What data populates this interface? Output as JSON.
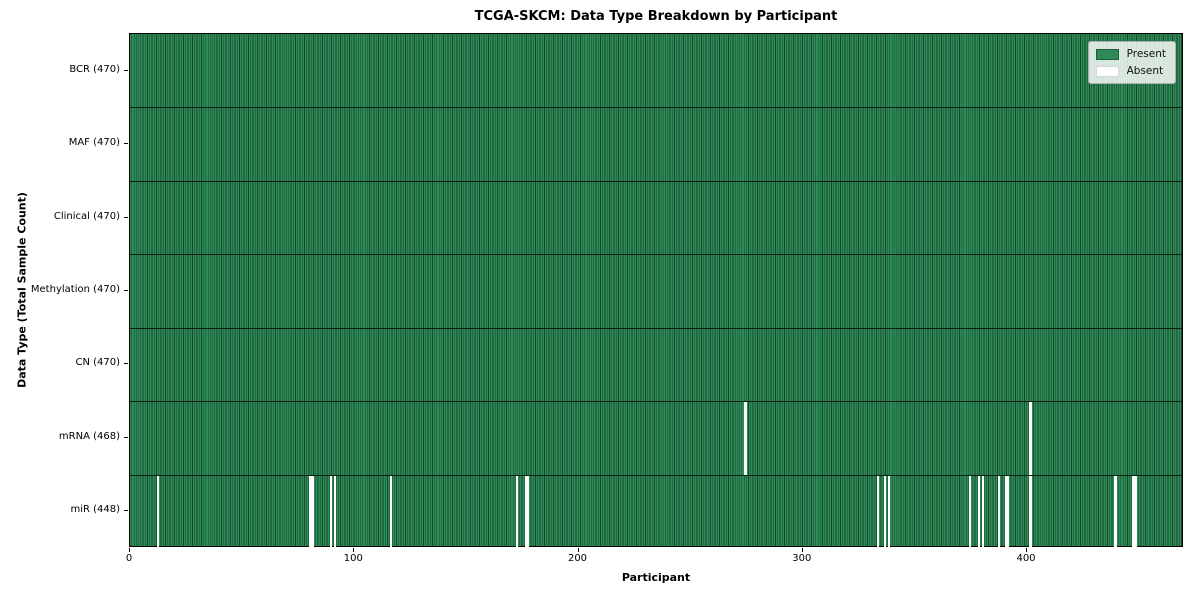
{
  "title": "TCGA-SKCM: Data Type Breakdown by Participant",
  "x_axis": {
    "label": "Participant",
    "ticks": [
      0,
      100,
      200,
      300,
      400
    ],
    "max": 470
  },
  "y_axis": {
    "label": "Data Type (Total Sample Count)"
  },
  "legend": {
    "position": "upper right",
    "items": [
      {
        "label": "Present",
        "color": "#2e8b57"
      },
      {
        "label": "Absent",
        "color": "#ffffff"
      }
    ]
  },
  "colors": {
    "present": "#2e8b57",
    "absent": "#ffffff",
    "cell_edge": "#174a2b",
    "plot_border": "#000000",
    "row_divider": "#1a1a1a",
    "legend_bg": "#f1f4f0",
    "legend_border": "#b0b0b0"
  },
  "chart_data": {
    "type": "heatmap",
    "title": "TCGA-SKCM: Data Type Breakdown by Participant",
    "xlabel": "Participant",
    "ylabel": "Data Type (Total Sample Count)",
    "n_participants": 470,
    "x_range": [
      0,
      470
    ],
    "x_ticks": [
      0,
      100,
      200,
      300,
      400
    ],
    "grid": false,
    "legend_entries": [
      "Present",
      "Absent"
    ],
    "legend_position": "upper right",
    "value_encoding": {
      "present": "#2e8b57",
      "absent": "#ffffff"
    },
    "rows": [
      {
        "name": "BCR",
        "label": "BCR (470)",
        "present_count": 470,
        "absent_participants": []
      },
      {
        "name": "MAF",
        "label": "MAF (470)",
        "present_count": 470,
        "absent_participants": []
      },
      {
        "name": "Clinical",
        "label": "Clinical (470)",
        "present_count": 470,
        "absent_participants": []
      },
      {
        "name": "Methylation",
        "label": "Methylation (470)",
        "present_count": 470,
        "absent_participants": []
      },
      {
        "name": "CN",
        "label": "CN (470)",
        "present_count": 470,
        "absent_participants": []
      },
      {
        "name": "mRNA",
        "label": "mRNA (468)",
        "present_count": 468,
        "absent_participants": [
          274,
          401
        ]
      },
      {
        "name": "miR",
        "label": "miR (448)",
        "present_count": 448,
        "absent_participants": [
          12,
          80,
          81,
          89,
          91,
          116,
          172,
          176,
          177,
          333,
          336,
          338,
          374,
          378,
          380,
          387,
          390,
          391,
          401,
          439,
          447,
          448
        ]
      }
    ]
  }
}
